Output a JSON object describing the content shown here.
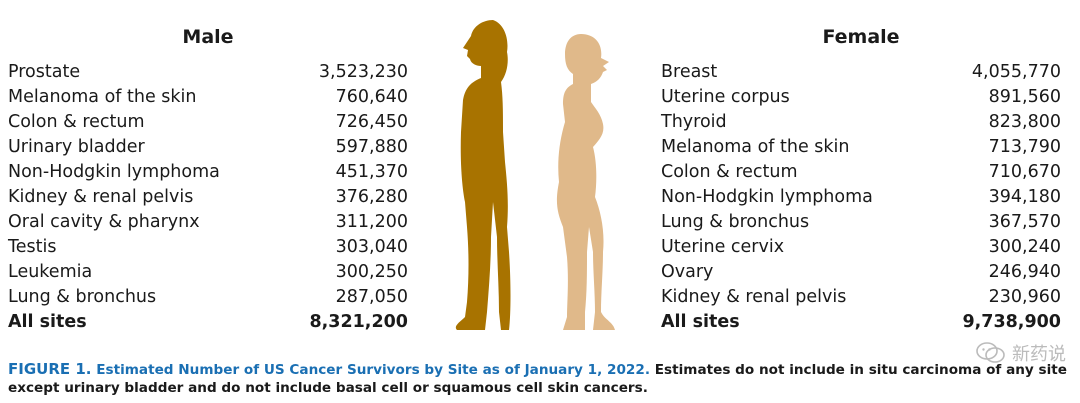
{
  "male": {
    "title": "Male",
    "rows": [
      {
        "site": "Prostate",
        "count": "3,523,230"
      },
      {
        "site": "Melanoma of the skin",
        "count": "760,640"
      },
      {
        "site": "Colon & rectum",
        "count": "726,450"
      },
      {
        "site": "Urinary bladder",
        "count": "597,880"
      },
      {
        "site": "Non-Hodgkin lymphoma",
        "count": "451,370"
      },
      {
        "site": "Kidney & renal pelvis",
        "count": "376,280"
      },
      {
        "site": "Oral cavity & pharynx",
        "count": "311,200"
      },
      {
        "site": "Testis",
        "count": "303,040"
      },
      {
        "site": "Leukemia",
        "count": "300,250"
      },
      {
        "site": "Lung & bronchus",
        "count": "287,050"
      }
    ],
    "total": {
      "site": "All sites",
      "count": "8,321,200"
    }
  },
  "female": {
    "title": "Female",
    "rows": [
      {
        "site": "Breast",
        "count": "4,055,770"
      },
      {
        "site": "Uterine corpus",
        "count": "891,560"
      },
      {
        "site": "Thyroid",
        "count": "823,800"
      },
      {
        "site": "Melanoma of the skin",
        "count": "713,790"
      },
      {
        "site": "Colon & rectum",
        "count": "710,670"
      },
      {
        "site": "Non-Hodgkin lymphoma",
        "count": "394,180"
      },
      {
        "site": "Lung & bronchus",
        "count": "367,570"
      },
      {
        "site": "Uterine cervix",
        "count": "300,240"
      },
      {
        "site": "Ovary",
        "count": "246,940"
      },
      {
        "site": "Kidney & renal pelvis",
        "count": "230,960"
      }
    ],
    "total": {
      "site": "All sites",
      "count": "9,738,900"
    }
  },
  "figure": {
    "male_color": "#a87300",
    "female_color": "#e0b98a"
  },
  "caption": {
    "label": "FIGURE 1.",
    "title": "Estimated Number of US Cancer Survivors by Site as of January 1, 2022.",
    "body": "Estimates do not include in situ carcinoma of any site except urinary bladder and do not include basal cell or squamous cell skin cancers."
  },
  "watermark": {
    "text": "新药说",
    "icon": "wechat-icon"
  }
}
